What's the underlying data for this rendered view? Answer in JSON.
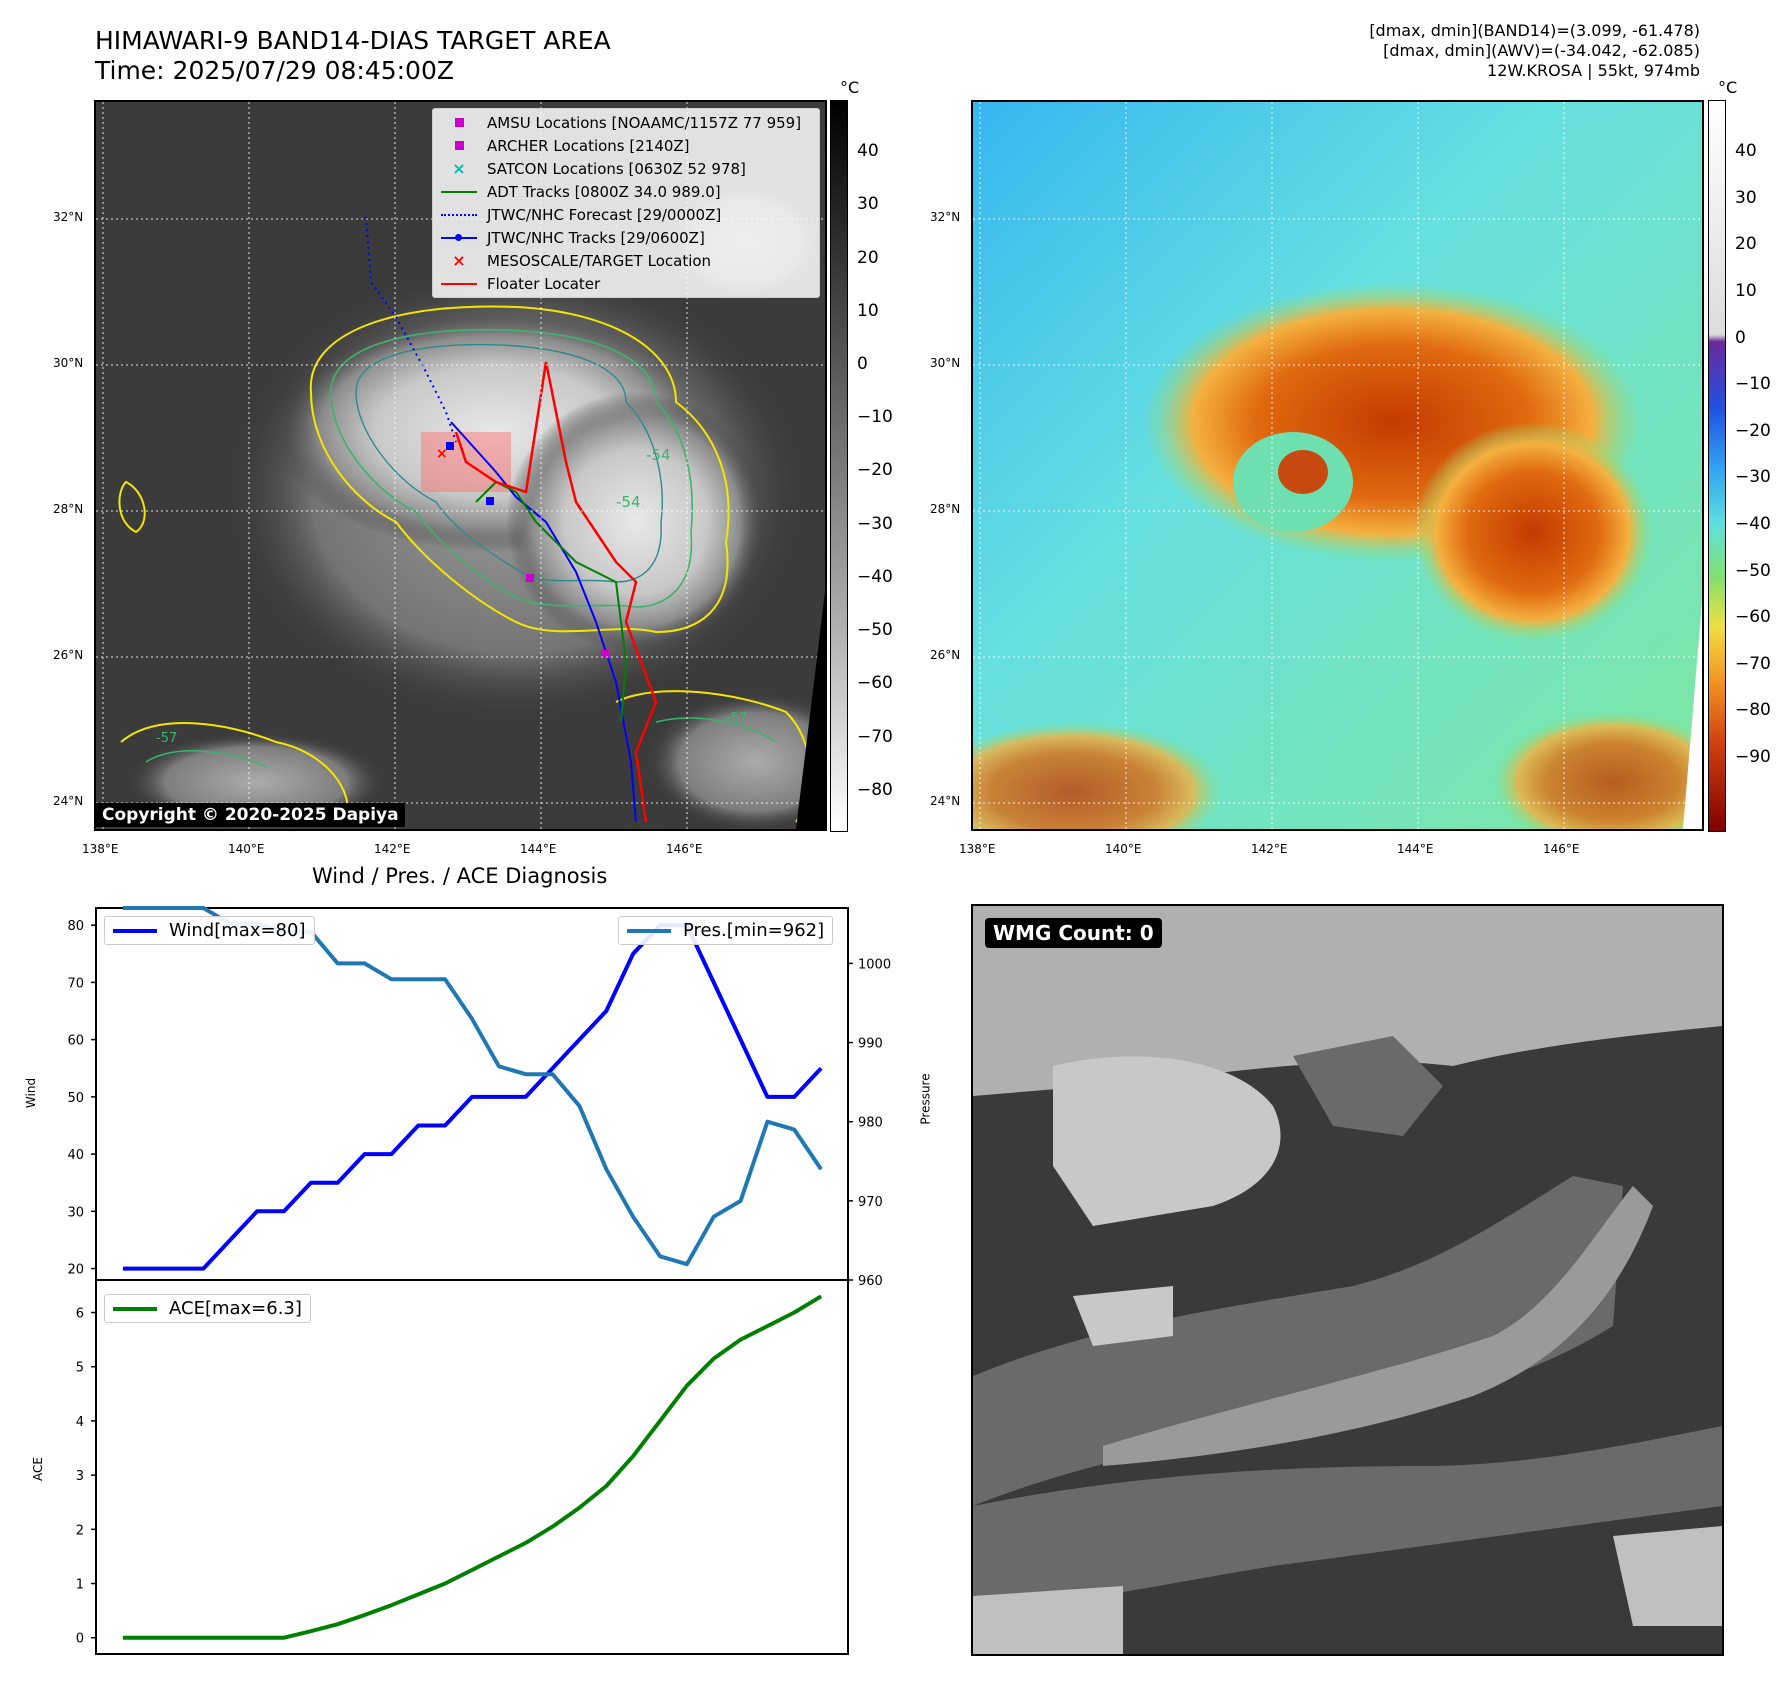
{
  "header": {
    "title_line1": "HIMAWARI-9 BAND14-DIAS TARGET AREA",
    "title_line2": "Time: 2025/07/29 08:45:00Z",
    "info_line1": "[dmax, dmin](BAND14)=(3.099, -61.478)",
    "info_line2": "[dmax, dmin](AWV)=(-34.042, -62.085)",
    "info_line3": "12W.KROSA | 55kt, 974mb"
  },
  "map": {
    "lat_labels": [
      "32°N",
      "30°N",
      "28°N",
      "26°N",
      "24°N"
    ],
    "lon_labels": [
      "138°E",
      "140°E",
      "142°E",
      "144°E",
      "146°E"
    ],
    "copyright": "Copyright © 2020-2025 Dapiya",
    "unit": "°C",
    "left_colorbar_ticks": [
      "40",
      "30",
      "20",
      "10",
      "0",
      "−10",
      "−20",
      "−30",
      "−40",
      "−50",
      "−60",
      "−70",
      "−80"
    ],
    "right_colorbar_ticks": [
      "40",
      "30",
      "20",
      "10",
      "0",
      "−10",
      "−20",
      "−30",
      "−40",
      "−50",
      "−60",
      "−70",
      "−80",
      "−90"
    ],
    "contour_labels": [
      "-54",
      "-54",
      "-57",
      "-57"
    ],
    "legend": [
      {
        "label": "AMSU Locations [NOAAMC/1157Z 77 959]",
        "color": "#cc00cc",
        "symbol": "square"
      },
      {
        "label": "ARCHER Locations [2140Z]",
        "color": "#cc00cc",
        "symbol": "square"
      },
      {
        "label": "SATCON Locations [0630Z 52 978]",
        "color": "#00bbbb",
        "symbol": "x"
      },
      {
        "label": "ADT Tracks [0800Z 34.0 989.0]",
        "color": "#008000",
        "symbol": "line"
      },
      {
        "label": "JTWC/NHC Forecast [29/0000Z]",
        "color": "#0000ff",
        "symbol": "dotted"
      },
      {
        "label": "JTWC/NHC Tracks [29/0600Z]",
        "color": "#0000ff",
        "symbol": "line-dot"
      },
      {
        "label": "MESOSCALE/TARGET Location",
        "color": "#ff0000",
        "symbol": "x"
      },
      {
        "label": "Floater Locater",
        "color": "#ff0000",
        "symbol": "line"
      }
    ]
  },
  "chart_data": [
    {
      "type": "line",
      "title": "Wind / Pres. / ACE Diagnosis",
      "ylabel": "Wind",
      "ylabel_right": "Pressure",
      "ylim": [
        18,
        83
      ],
      "ylim_right": [
        960,
        1007
      ],
      "y_ticks": [
        "80",
        "70",
        "60",
        "50",
        "40",
        "30",
        "20"
      ],
      "y_ticks_right": [
        "1000",
        "990",
        "980",
        "970",
        "960"
      ],
      "x": [
        0,
        1,
        2,
        3,
        4,
        5,
        6,
        7,
        8,
        9,
        10,
        11,
        12,
        13,
        14,
        15,
        16,
        17,
        18,
        19,
        20,
        21,
        22,
        23,
        24,
        25,
        26
      ],
      "series": [
        {
          "name": "Wind[max=80]",
          "axis": "left",
          "color": "#0000ff",
          "values": [
            20,
            20,
            20,
            20,
            25,
            30,
            30,
            35,
            35,
            40,
            40,
            45,
            45,
            50,
            50,
            50,
            55,
            60,
            65,
            75,
            80,
            80,
            70,
            60,
            50,
            50,
            55
          ]
        },
        {
          "name": "Pres.[min=962]",
          "axis": "right",
          "color": "#1f77b4",
          "values": [
            1007,
            1007,
            1007,
            1007,
            1005,
            1005,
            1004,
            1004,
            1000,
            1000,
            998,
            998,
            998,
            993,
            987,
            986,
            986,
            982,
            974,
            968,
            963,
            962,
            968,
            970,
            980,
            979,
            974
          ]
        }
      ]
    },
    {
      "type": "line",
      "ylabel": "ACE",
      "ylim": [
        -0.3,
        6.6
      ],
      "y_ticks": [
        "6",
        "5",
        "4",
        "3",
        "2",
        "1",
        "0"
      ],
      "x": [
        0,
        1,
        2,
        3,
        4,
        5,
        6,
        7,
        8,
        9,
        10,
        11,
        12,
        13,
        14,
        15,
        16,
        17,
        18,
        19,
        20,
        21,
        22,
        23,
        24,
        25,
        26
      ],
      "series": [
        {
          "name": "ACE[max=6.3]",
          "color": "#008000",
          "values": [
            0,
            0,
            0,
            0,
            0,
            0,
            0,
            0.12,
            0.25,
            0.42,
            0.6,
            0.8,
            1.0,
            1.25,
            1.5,
            1.75,
            2.05,
            2.4,
            2.8,
            3.35,
            4.0,
            4.65,
            5.15,
            5.5,
            5.75,
            6.0,
            6.3
          ]
        }
      ]
    }
  ],
  "wmg": {
    "label": "WMG Count: 0"
  }
}
